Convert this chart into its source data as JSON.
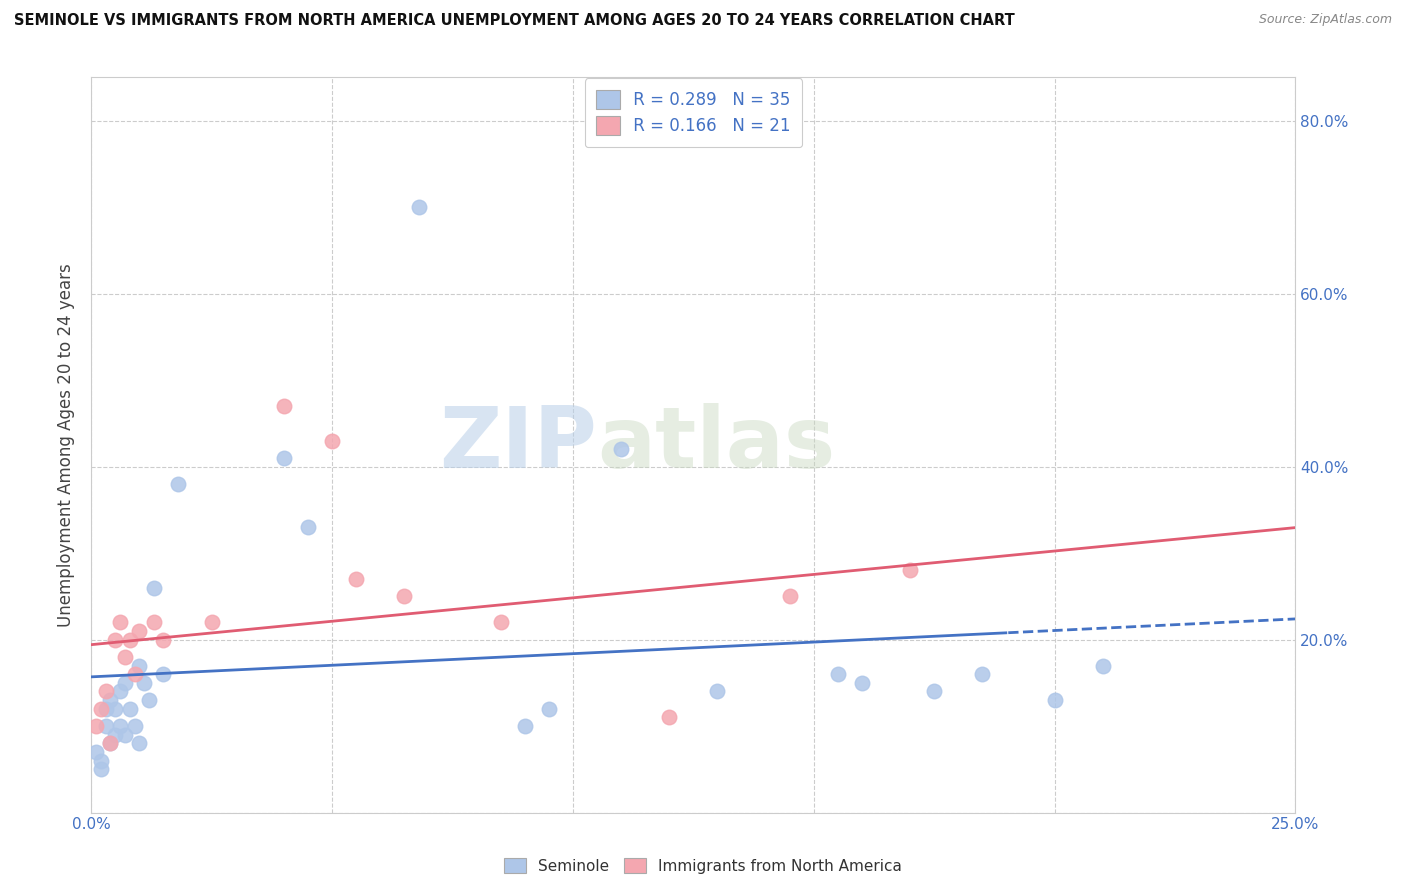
{
  "title": "SEMINOLE VS IMMIGRANTS FROM NORTH AMERICA UNEMPLOYMENT AMONG AGES 20 TO 24 YEARS CORRELATION CHART",
  "source": "Source: ZipAtlas.com",
  "ylabel": "Unemployment Among Ages 20 to 24 years",
  "xlim": [
    0.0,
    0.25
  ],
  "ylim": [
    0.0,
    0.85
  ],
  "x_ticks": [
    0.0,
    0.05,
    0.1,
    0.15,
    0.2,
    0.25
  ],
  "x_tick_labels": [
    "0.0%",
    "",
    "",
    "",
    "",
    "25.0%"
  ],
  "y_ticks": [
    0.0,
    0.2,
    0.4,
    0.6,
    0.8
  ],
  "y_right_labels": [
    "",
    "20.0%",
    "40.0%",
    "60.0%",
    "80.0%"
  ],
  "r_seminole": 0.289,
  "n_seminole": 35,
  "r_immigrants": 0.166,
  "n_immigrants": 21,
  "seminole_color": "#aec6e8",
  "immigrants_color": "#f4a7b0",
  "seminole_line_color": "#4472c4",
  "immigrants_line_color": "#e05c72",
  "watermark_left": "ZIP",
  "watermark_right": "atlas",
  "seminole_x": [
    0.001,
    0.002,
    0.002,
    0.003,
    0.003,
    0.004,
    0.004,
    0.005,
    0.005,
    0.006,
    0.006,
    0.007,
    0.007,
    0.008,
    0.009,
    0.01,
    0.01,
    0.011,
    0.012,
    0.013,
    0.015,
    0.018,
    0.04,
    0.045,
    0.068,
    0.09,
    0.095,
    0.11,
    0.13,
    0.155,
    0.16,
    0.175,
    0.185,
    0.2,
    0.21
  ],
  "seminole_y": [
    0.07,
    0.05,
    0.06,
    0.1,
    0.12,
    0.08,
    0.13,
    0.09,
    0.12,
    0.1,
    0.14,
    0.09,
    0.15,
    0.12,
    0.1,
    0.17,
    0.08,
    0.15,
    0.13,
    0.26,
    0.16,
    0.38,
    0.41,
    0.33,
    0.7,
    0.1,
    0.12,
    0.42,
    0.14,
    0.16,
    0.15,
    0.14,
    0.16,
    0.13,
    0.17
  ],
  "immigrants_x": [
    0.001,
    0.002,
    0.003,
    0.004,
    0.005,
    0.006,
    0.007,
    0.008,
    0.009,
    0.01,
    0.013,
    0.015,
    0.025,
    0.04,
    0.05,
    0.055,
    0.065,
    0.085,
    0.12,
    0.145,
    0.17
  ],
  "immigrants_y": [
    0.1,
    0.12,
    0.14,
    0.08,
    0.2,
    0.22,
    0.18,
    0.2,
    0.16,
    0.21,
    0.22,
    0.2,
    0.22,
    0.47,
    0.43,
    0.27,
    0.25,
    0.22,
    0.11,
    0.25,
    0.28
  ]
}
